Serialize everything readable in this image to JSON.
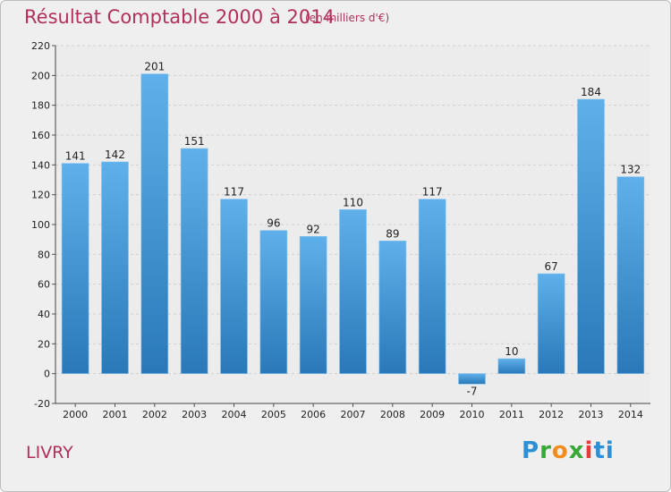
{
  "chart_data": {
    "type": "bar",
    "title": "Résultat Comptable 2000 à 2014",
    "subtitle": "(en milliers d'€)",
    "categories": [
      "2000",
      "2001",
      "2002",
      "2003",
      "2004",
      "2005",
      "2006",
      "2007",
      "2008",
      "2009",
      "2010",
      "2011",
      "2012",
      "2013",
      "2014"
    ],
    "values": [
      141,
      142,
      201,
      151,
      117,
      96,
      92,
      110,
      89,
      117,
      -7,
      10,
      67,
      184,
      132
    ],
    "yticks": [
      -20,
      0,
      20,
      40,
      60,
      80,
      100,
      120,
      140,
      160,
      180,
      200,
      220
    ],
    "ylim": [
      -20,
      220
    ],
    "xlabel": "",
    "ylabel": "",
    "grid": "horizontal",
    "bar_color_light": "#5fb0ea",
    "bar_color_dark": "#2a78b8"
  },
  "footer": {
    "city": "LIVRY",
    "logo": "Proxiti"
  }
}
